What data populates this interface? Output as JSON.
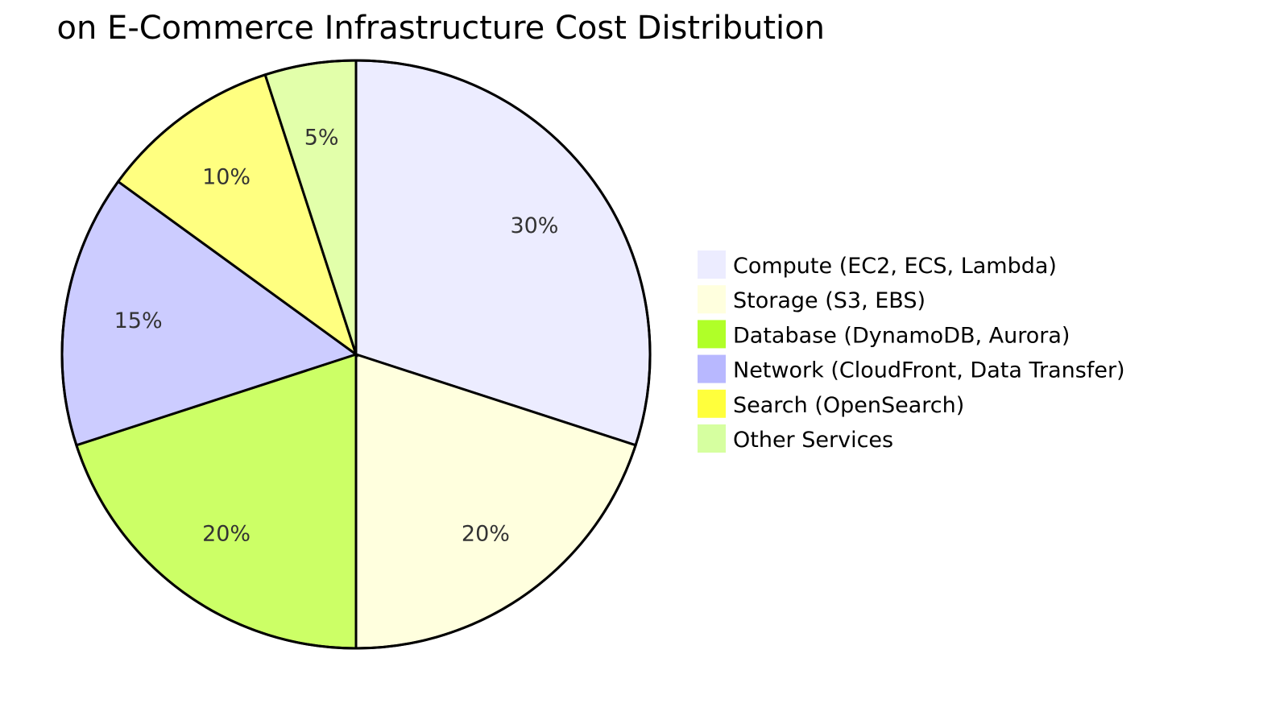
{
  "chart_data": {
    "type": "pie",
    "title": "on E-Commerce Infrastructure Cost Distribution",
    "slices": [
      {
        "label": "Compute (EC2, ECS, Lambda)",
        "value": 30,
        "display": "30%",
        "color": "#ECECFF"
      },
      {
        "label": "Storage (S3, EBS)",
        "value": 20,
        "display": "20%",
        "color": "#FFFFDE"
      },
      {
        "label": "Database (DynamoDB, Aurora)",
        "value": 20,
        "display": "20%",
        "color": "#CCFF66"
      },
      {
        "label": "Network (CloudFront, Data Transfer)",
        "value": 15,
        "display": "15%",
        "color": "#CCCCFF"
      },
      {
        "label": "Search (OpenSearch)",
        "value": 10,
        "display": "10%",
        "color": "#FFFF80"
      },
      {
        "label": "Other Services",
        "value": 5,
        "display": "5%",
        "color": "#E2FFAA"
      }
    ],
    "legend_colors": [
      "#ECECFF",
      "#FFFFDE",
      "#B0FF28",
      "#B8B8FF",
      "#FFFF3C",
      "#D6FFA0"
    ],
    "legend_position": "right"
  }
}
